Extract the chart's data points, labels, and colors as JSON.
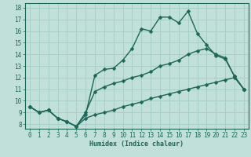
{
  "xlabel": "Humidex (Indice chaleur)",
  "bg_color": "#c2e0da",
  "grid_color": "#a8cec8",
  "line_color": "#1a6858",
  "xlim_min": -0.5,
  "xlim_max": 23.5,
  "ylim_min": 7.6,
  "ylim_max": 18.4,
  "xticks": [
    0,
    1,
    2,
    3,
    4,
    5,
    6,
    7,
    8,
    9,
    10,
    11,
    12,
    13,
    14,
    15,
    16,
    17,
    18,
    19,
    20,
    21,
    22,
    23
  ],
  "yticks": [
    8,
    9,
    10,
    11,
    12,
    13,
    14,
    15,
    16,
    17,
    18
  ],
  "line1_x": [
    0,
    1,
    2,
    3,
    4,
    5,
    6,
    7,
    8,
    9,
    10,
    11,
    12,
    13,
    14,
    15,
    16,
    17,
    18,
    19,
    20,
    21,
    22,
    23
  ],
  "line1_y": [
    9.5,
    9.0,
    9.2,
    8.5,
    8.2,
    7.8,
    8.8,
    12.2,
    12.7,
    12.8,
    13.5,
    14.5,
    16.2,
    16.0,
    17.2,
    17.2,
    16.7,
    17.7,
    15.8,
    14.8,
    13.9,
    13.6,
    12.1,
    11.0
  ],
  "line2_x": [
    0,
    1,
    2,
    3,
    4,
    5,
    6,
    7,
    8,
    9,
    10,
    11,
    12,
    13,
    14,
    15,
    16,
    17,
    18,
    19,
    20,
    21,
    22,
    23
  ],
  "line2_y": [
    9.5,
    9.0,
    9.2,
    8.5,
    8.2,
    7.8,
    9.0,
    10.8,
    11.2,
    11.5,
    11.7,
    12.0,
    12.2,
    12.5,
    13.0,
    13.2,
    13.5,
    14.0,
    14.3,
    14.5,
    14.0,
    13.7,
    12.1,
    11.0
  ],
  "line3_x": [
    0,
    1,
    2,
    3,
    4,
    5,
    6,
    7,
    8,
    9,
    10,
    11,
    12,
    13,
    14,
    15,
    16,
    17,
    18,
    19,
    20,
    21,
    22,
    23
  ],
  "line3_y": [
    9.5,
    9.0,
    9.2,
    8.5,
    8.2,
    7.8,
    8.5,
    8.8,
    9.0,
    9.2,
    9.5,
    9.7,
    9.9,
    10.2,
    10.4,
    10.6,
    10.8,
    11.0,
    11.2,
    11.4,
    11.6,
    11.8,
    12.0,
    11.0
  ],
  "tick_fontsize": 5.5,
  "xlabel_fontsize": 6.0
}
